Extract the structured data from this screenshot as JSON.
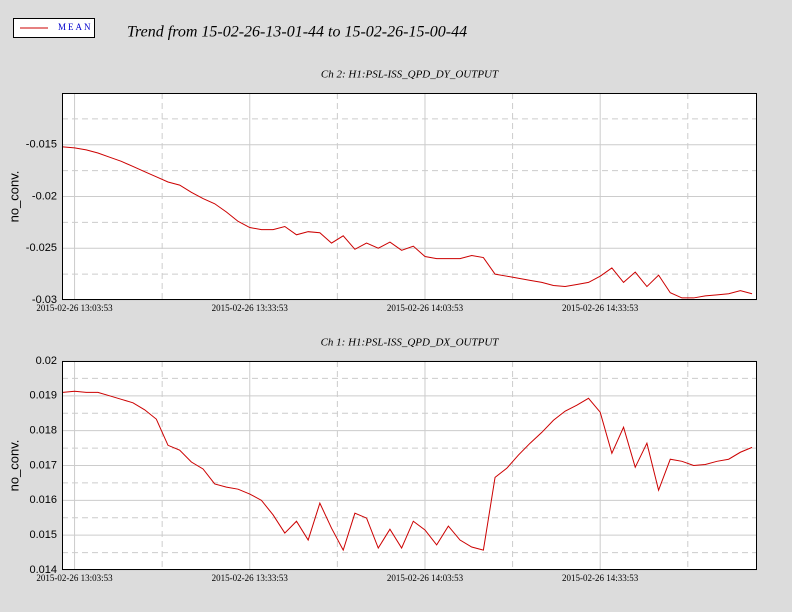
{
  "title": "Trend from 15-02-26-13-01-44 to 15-02-26-15-00-44",
  "chart_data": [
    {
      "type": "line",
      "title": "Ch 2: H1:PSL-ISS_QPD_DY_OUTPUT",
      "ylabel": "no_conv.",
      "x": [
        "2015-02-26 13:01:53",
        "2015-02-26 13:03:53",
        "2015-02-26 13:05:53",
        "2015-02-26 13:07:53",
        "2015-02-26 13:09:53",
        "2015-02-26 13:11:53",
        "2015-02-26 13:13:53",
        "2015-02-26 13:15:53",
        "2015-02-26 13:17:53",
        "2015-02-26 13:19:53",
        "2015-02-26 13:21:53",
        "2015-02-26 13:23:53",
        "2015-02-26 13:25:53",
        "2015-02-26 13:27:53",
        "2015-02-26 13:29:53",
        "2015-02-26 13:31:53",
        "2015-02-26 13:33:53",
        "2015-02-26 13:35:53",
        "2015-02-26 13:37:53",
        "2015-02-26 13:39:53",
        "2015-02-26 13:41:53",
        "2015-02-26 13:43:53",
        "2015-02-26 13:45:53",
        "2015-02-26 13:47:53",
        "2015-02-26 13:49:53",
        "2015-02-26 13:51:53",
        "2015-02-26 13:53:53",
        "2015-02-26 13:55:53",
        "2015-02-26 13:57:53",
        "2015-02-26 13:59:53",
        "2015-02-26 14:01:53",
        "2015-02-26 14:03:53",
        "2015-02-26 14:05:53",
        "2015-02-26 14:07:53",
        "2015-02-26 14:09:53",
        "2015-02-26 14:11:53",
        "2015-02-26 14:13:53",
        "2015-02-26 14:15:53",
        "2015-02-26 14:17:53",
        "2015-02-26 14:19:53",
        "2015-02-26 14:21:53",
        "2015-02-26 14:23:53",
        "2015-02-26 14:25:53",
        "2015-02-26 14:27:53",
        "2015-02-26 14:29:53",
        "2015-02-26 14:31:53",
        "2015-02-26 14:33:53",
        "2015-02-26 14:35:53",
        "2015-02-26 14:37:53",
        "2015-02-26 14:39:53",
        "2015-02-26 14:41:53",
        "2015-02-26 14:43:53",
        "2015-02-26 14:45:53",
        "2015-02-26 14:47:53",
        "2015-02-26 14:49:53",
        "2015-02-26 14:51:53",
        "2015-02-26 14:53:53",
        "2015-02-26 14:55:53",
        "2015-02-26 14:57:53",
        "2015-02-26 14:59:53"
      ],
      "series": [
        {
          "name": "MEAN",
          "color": "#cc0000",
          "values": [
            -0.0152,
            -0.0153,
            -0.0155,
            -0.0158,
            -0.0162,
            -0.0166,
            -0.0171,
            -0.0176,
            -0.0181,
            -0.0186,
            -0.0189,
            -0.0196,
            -0.0202,
            -0.0207,
            -0.0215,
            -0.0224,
            -0.023,
            -0.0232,
            -0.0232,
            -0.0229,
            -0.0237,
            -0.0234,
            -0.0235,
            -0.0245,
            -0.0238,
            -0.0251,
            -0.0245,
            -0.025,
            -0.0244,
            -0.0252,
            -0.0248,
            -0.0258,
            -0.026,
            -0.026,
            -0.026,
            -0.0257,
            -0.0259,
            -0.0275,
            -0.0277,
            -0.0279,
            -0.0281,
            -0.0283,
            -0.0286,
            -0.0287,
            -0.0285,
            -0.0283,
            -0.0277,
            -0.0269,
            -0.0283,
            -0.0273,
            -0.0287,
            -0.0276,
            -0.0293,
            -0.0298,
            -0.0298,
            -0.0296,
            -0.0295,
            -0.0294,
            -0.0291,
            -0.0294
          ]
        }
      ],
      "xlim": [
        "2015-02-26 13:01:44",
        "2015-02-26 15:00:44"
      ],
      "xticks": [
        "2015-02-26 13:03:53",
        "2015-02-26 13:33:53",
        "2015-02-26 14:03:53",
        "2015-02-26 14:33:53"
      ],
      "xticks_minor": [
        "2015-02-26 13:18:53",
        "2015-02-26 13:48:53",
        "2015-02-26 14:18:53",
        "2015-02-26 14:48:53"
      ],
      "ylim": [
        -0.03,
        -0.01
      ],
      "yticks": [
        -0.03,
        -0.025,
        -0.02,
        -0.015
      ],
      "yticks_minor": [
        -0.0275,
        -0.0225,
        -0.0175,
        -0.0125
      ],
      "grid": true
    },
    {
      "type": "line",
      "title": "Ch 1: H1:PSL-ISS_QPD_DX_OUTPUT",
      "ylabel": "no_conv.",
      "x": [
        "2015-02-26 13:01:53",
        "2015-02-26 13:03:53",
        "2015-02-26 13:05:53",
        "2015-02-26 13:07:53",
        "2015-02-26 13:09:53",
        "2015-02-26 13:11:53",
        "2015-02-26 13:13:53",
        "2015-02-26 13:15:53",
        "2015-02-26 13:17:53",
        "2015-02-26 13:19:53",
        "2015-02-26 13:21:53",
        "2015-02-26 13:23:53",
        "2015-02-26 13:25:53",
        "2015-02-26 13:27:53",
        "2015-02-26 13:29:53",
        "2015-02-26 13:31:53",
        "2015-02-26 13:33:53",
        "2015-02-26 13:35:53",
        "2015-02-26 13:37:53",
        "2015-02-26 13:39:53",
        "2015-02-26 13:41:53",
        "2015-02-26 13:43:53",
        "2015-02-26 13:45:53",
        "2015-02-26 13:47:53",
        "2015-02-26 13:49:53",
        "2015-02-26 13:51:53",
        "2015-02-26 13:53:53",
        "2015-02-26 13:55:53",
        "2015-02-26 13:57:53",
        "2015-02-26 13:59:53",
        "2015-02-26 14:01:53",
        "2015-02-26 14:03:53",
        "2015-02-26 14:05:53",
        "2015-02-26 14:07:53",
        "2015-02-26 14:09:53",
        "2015-02-26 14:11:53",
        "2015-02-26 14:13:53",
        "2015-02-26 14:15:53",
        "2015-02-26 14:17:53",
        "2015-02-26 14:19:53",
        "2015-02-26 14:21:53",
        "2015-02-26 14:23:53",
        "2015-02-26 14:25:53",
        "2015-02-26 14:27:53",
        "2015-02-26 14:29:53",
        "2015-02-26 14:31:53",
        "2015-02-26 14:33:53",
        "2015-02-26 14:35:53",
        "2015-02-26 14:37:53",
        "2015-02-26 14:39:53",
        "2015-02-26 14:41:53",
        "2015-02-26 14:43:53",
        "2015-02-26 14:45:53",
        "2015-02-26 14:47:53",
        "2015-02-26 14:49:53",
        "2015-02-26 14:51:53",
        "2015-02-26 14:53:53",
        "2015-02-26 14:55:53",
        "2015-02-26 14:57:53",
        "2015-02-26 14:59:53"
      ],
      "series": [
        {
          "name": "MEAN",
          "color": "#cc0000",
          "values": [
            0.0191,
            0.01913,
            0.0191,
            0.0191,
            0.019,
            0.0189,
            0.0188,
            0.0186,
            0.01833,
            0.01758,
            0.01744,
            0.0171,
            0.0169,
            0.01647,
            0.01638,
            0.01632,
            0.01618,
            0.016,
            0.01558,
            0.01506,
            0.0154,
            0.01486,
            0.01592,
            0.0152,
            0.01457,
            0.01563,
            0.01549,
            0.01463,
            0.01517,
            0.01463,
            0.0154,
            0.01515,
            0.01472,
            0.01526,
            0.01486,
            0.01466,
            0.01457,
            0.01666,
            0.01692,
            0.0173,
            0.01764,
            0.01795,
            0.0183,
            0.01856,
            0.01873,
            0.01893,
            0.01853,
            0.01735,
            0.0181,
            0.01695,
            0.01764,
            0.01629,
            0.01718,
            0.01712,
            0.017,
            0.01703,
            0.01712,
            0.01718,
            0.01738,
            0.01752
          ]
        }
      ],
      "xlim": [
        "2015-02-26 13:01:44",
        "2015-02-26 15:00:44"
      ],
      "xticks": [
        "2015-02-26 13:03:53",
        "2015-02-26 13:33:53",
        "2015-02-26 14:03:53",
        "2015-02-26 14:33:53"
      ],
      "xticks_minor": [
        "2015-02-26 13:18:53",
        "2015-02-26 13:48:53",
        "2015-02-26 14:18:53",
        "2015-02-26 14:48:53"
      ],
      "ylim": [
        0.014,
        0.02
      ],
      "yticks": [
        0.014,
        0.015,
        0.016,
        0.017,
        0.018,
        0.019,
        0.02
      ],
      "yticks_minor": [
        0.0145,
        0.0155,
        0.0165,
        0.0175,
        0.0185,
        0.0195
      ],
      "grid": true
    }
  ]
}
